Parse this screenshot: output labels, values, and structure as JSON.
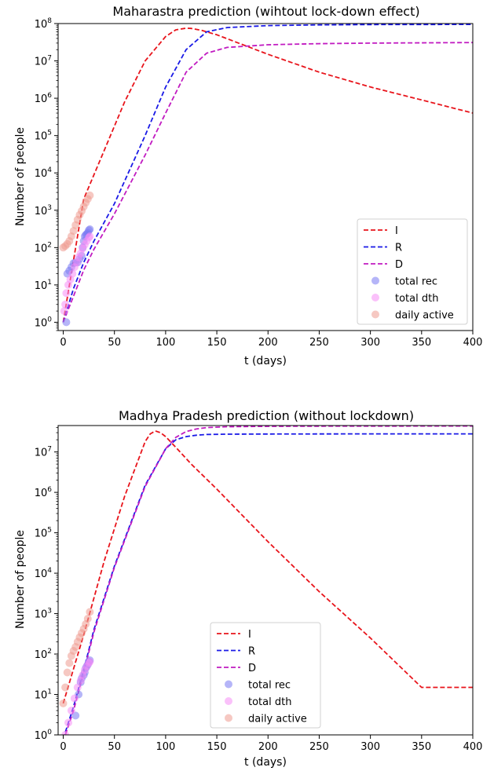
{
  "chart_data": [
    {
      "type": "line",
      "title": "Maharastra prediction (wihtout lock-down effect)",
      "xlabel": "t (days)",
      "ylabel": "Number of people",
      "xlim": [
        -5,
        400
      ],
      "ylim": [
        0.6,
        100000000
      ],
      "yscale": "log",
      "grid": false,
      "legend_position": "lower-right",
      "x_ticks": [
        0,
        50,
        100,
        150,
        200,
        250,
        300,
        350,
        400
      ],
      "y_ticks": [
        {
          "value": 1,
          "base": "10",
          "exp": "0"
        },
        {
          "value": 10,
          "base": "10",
          "exp": "1"
        },
        {
          "value": 100,
          "base": "10",
          "exp": "2"
        },
        {
          "value": 1000,
          "base": "10",
          "exp": "3"
        },
        {
          "value": 10000,
          "base": "10",
          "exp": "4"
        },
        {
          "value": 100000,
          "base": "10",
          "exp": "5"
        },
        {
          "value": 1000000,
          "base": "10",
          "exp": "6"
        },
        {
          "value": 10000000,
          "base": "10",
          "exp": "7"
        },
        {
          "value": 100000000,
          "base": "10",
          "exp": "8"
        }
      ],
      "series": [
        {
          "name": "I",
          "style": "dashed",
          "color": "#e8141b",
          "x": [
            0,
            20,
            40,
            60,
            80,
            100,
            110,
            120,
            125,
            135,
            150,
            200,
            250,
            300,
            350,
            400
          ],
          "y": [
            1,
            2000,
            40000,
            800000,
            10000000,
            45000000,
            68000000,
            75000000,
            74000000,
            66000000,
            50000000,
            15000000,
            5000000,
            2000000,
            900000,
            400000
          ]
        },
        {
          "name": "R",
          "style": "dashed",
          "color": "#1a1ae6",
          "x": [
            0,
            10,
            20,
            30,
            50,
            80,
            100,
            120,
            140,
            160,
            200,
            250,
            300,
            400
          ],
          "y": [
            1,
            8,
            40,
            150,
            1500,
            100000,
            2000000,
            20000000,
            60000000,
            78000000,
            88000000,
            92000000,
            94000000,
            95000000
          ]
        },
        {
          "name": "D",
          "style": "dashed",
          "color": "#c11bc1",
          "x": [
            0,
            10,
            20,
            30,
            50,
            80,
            100,
            120,
            140,
            160,
            200,
            250,
            300,
            400
          ],
          "y": [
            1,
            5,
            25,
            90,
            800,
            30000,
            400000,
            5000000,
            16000000,
            23000000,
            27000000,
            29000000,
            30000000,
            31000000
          ]
        },
        {
          "name": "total rec",
          "style": "marker",
          "color": "#7878f2",
          "x": [
            3,
            4,
            6,
            8,
            10,
            12,
            14,
            16,
            18,
            19,
            20,
            21,
            22,
            23,
            24,
            25,
            26
          ],
          "y": [
            1,
            20,
            24,
            30,
            38,
            40,
            40,
            50,
            60,
            100,
            150,
            200,
            220,
            230,
            250,
            290,
            310
          ]
        },
        {
          "name": "total dth",
          "style": "marker",
          "color": "#f58ef5",
          "x": [
            1,
            2,
            3,
            5,
            7,
            9,
            11,
            13,
            15,
            17,
            19,
            21,
            23,
            25,
            26
          ],
          "y": [
            2,
            3,
            6,
            10,
            14,
            20,
            30,
            40,
            55,
            70,
            95,
            120,
            150,
            185,
            200
          ]
        },
        {
          "name": "daily active",
          "style": "marker",
          "color": "#ef9a90",
          "x": [
            0,
            2,
            4,
            6,
            8,
            10,
            12,
            14,
            16,
            18,
            20,
            22,
            24,
            26
          ],
          "y": [
            100,
            110,
            125,
            150,
            200,
            280,
            400,
            560,
            750,
            950,
            1250,
            1600,
            2000,
            2500
          ]
        }
      ]
    },
    {
      "type": "line",
      "title": "Madhya Pradesh prediction (without lockdown)",
      "xlabel": "t (days)",
      "ylabel": "Number of people",
      "xlim": [
        -5,
        400
      ],
      "ylim": [
        1,
        45000000
      ],
      "yscale": "log",
      "grid": false,
      "legend_position": "lower-center",
      "x_ticks": [
        0,
        50,
        100,
        150,
        200,
        250,
        300,
        350,
        400
      ],
      "y_ticks": [
        {
          "value": 1,
          "base": "10",
          "exp": "0"
        },
        {
          "value": 10,
          "base": "10",
          "exp": "1"
        },
        {
          "value": 100,
          "base": "10",
          "exp": "2"
        },
        {
          "value": 1000,
          "base": "10",
          "exp": "3"
        },
        {
          "value": 10000,
          "base": "10",
          "exp": "4"
        },
        {
          "value": 100000,
          "base": "10",
          "exp": "5"
        },
        {
          "value": 1000000,
          "base": "10",
          "exp": "6"
        },
        {
          "value": 10000000,
          "base": "10",
          "exp": "7"
        }
      ],
      "series": [
        {
          "name": "I",
          "style": "dashed",
          "color": "#e8141b",
          "x": [
            0,
            20,
            40,
            60,
            80,
            85,
            90,
            95,
            100,
            110,
            125,
            150,
            200,
            250,
            300,
            350,
            400
          ],
          "y": [
            6,
            300,
            20000,
            800000,
            18000000,
            28000000,
            33000000,
            30000000,
            24000000,
            13000000,
            5000000,
            1200000,
            60000,
            3500,
            250,
            15,
            15
          ]
        },
        {
          "name": "R",
          "style": "dashed",
          "color": "#1a1ae6",
          "x": [
            0,
            10,
            20,
            30,
            50,
            80,
            100,
            110,
            120,
            130,
            140,
            160,
            200,
            250,
            300,
            400
          ],
          "y": [
            0.8,
            5,
            40,
            400,
            15000,
            1500000,
            12000000,
            20000000,
            24000000,
            26000000,
            27000000,
            27500000,
            27800000,
            27900000,
            28000000,
            28000000
          ]
        },
        {
          "name": "D",
          "style": "dashed",
          "color": "#c11bc1",
          "x": [
            0,
            10,
            20,
            30,
            50,
            80,
            100,
            110,
            120,
            130,
            140,
            160,
            200,
            250,
            300,
            400
          ],
          "y": [
            0.7,
            4,
            35,
            350,
            14000,
            1400000,
            12000000,
            23000000,
            32000000,
            37000000,
            40000000,
            42000000,
            43000000,
            43500000,
            43700000,
            43800000
          ]
        },
        {
          "name": "total rec",
          "style": "marker",
          "color": "#7878f2",
          "x": [
            12,
            15,
            17,
            18,
            20,
            21,
            22,
            23,
            24,
            25,
            26
          ],
          "y": [
            3,
            10,
            20,
            25,
            30,
            35,
            45,
            50,
            55,
            65,
            70
          ]
        },
        {
          "name": "total dth",
          "style": "marker",
          "color": "#f58ef5",
          "x": [
            2,
            5,
            8,
            11,
            14,
            17,
            19,
            21,
            23,
            25,
            26
          ],
          "y": [
            1,
            2,
            4,
            8,
            15,
            22,
            30,
            40,
            50,
            60,
            65
          ]
        },
        {
          "name": "daily active",
          "style": "marker",
          "color": "#ef9a90",
          "x": [
            0,
            2,
            4,
            6,
            8,
            10,
            12,
            14,
            16,
            18,
            20,
            22,
            24,
            26
          ],
          "y": [
            6,
            15,
            35,
            60,
            90,
            120,
            150,
            200,
            260,
            330,
            420,
            550,
            750,
            1100
          ]
        }
      ]
    }
  ]
}
